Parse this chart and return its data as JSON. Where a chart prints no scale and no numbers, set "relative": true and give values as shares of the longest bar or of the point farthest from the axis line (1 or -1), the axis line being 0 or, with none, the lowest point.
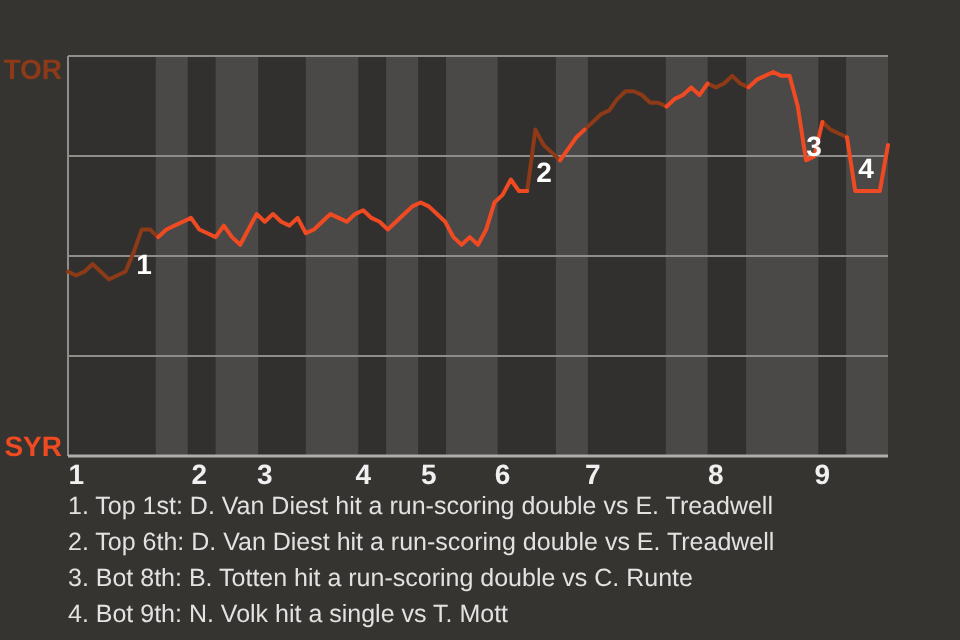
{
  "chart_data": {
    "type": "line",
    "relative": true,
    "categories": [
      null,
      "1",
      null,
      null,
      null,
      null,
      null,
      null,
      null,
      null,
      null,
      null,
      null,
      null,
      null,
      null,
      "2",
      null,
      null,
      null,
      null,
      null,
      null,
      null,
      "3",
      null,
      null,
      null,
      null,
      null,
      null,
      null,
      null,
      null,
      null,
      null,
      "4",
      null,
      null,
      null,
      null,
      null,
      null,
      null,
      "5",
      null,
      null,
      null,
      null,
      null,
      null,
      null,
      null,
      "6",
      null,
      null,
      null,
      null,
      null,
      null,
      null,
      null,
      null,
      null,
      "7",
      null,
      null,
      null,
      null,
      null,
      null,
      null,
      null,
      null,
      null,
      null,
      null,
      null,
      null,
      "8",
      null,
      null,
      null,
      null,
      null,
      null,
      null,
      null,
      null,
      null,
      null,
      null,
      "9",
      null,
      null,
      null,
      null,
      null,
      null,
      null,
      null
    ],
    "grid": "y",
    "series": [
      {
        "color": "#8c3a17",
        "values": [
          0.48,
          0.47,
          0.48,
          0.5,
          0.48,
          0.46,
          0.47,
          0.48,
          0.53,
          0.59,
          0.59,
          0.57,
          null,
          null,
          null,
          null,
          null,
          null,
          null,
          null,
          null,
          null,
          null,
          null,
          null,
          null,
          null,
          null,
          null,
          null,
          null,
          null,
          null,
          null,
          null,
          null,
          null,
          null,
          null,
          null,
          null,
          null,
          null,
          null,
          null,
          null,
          null,
          null,
          null,
          null,
          null,
          null,
          null,
          null,
          null,
          null,
          0.69,
          0.85,
          0.81,
          0.79,
          0.77,
          null,
          null,
          0.85,
          0.87,
          0.89,
          0.9,
          0.93,
          0.95,
          0.95,
          0.94,
          0.92,
          0.92,
          0.91,
          null,
          null,
          null,
          null,
          0.97,
          0.96,
          0.97,
          0.99,
          0.97,
          0.96,
          null,
          null,
          null,
          null,
          null,
          null,
          null,
          null,
          0.87,
          0.85,
          0.84,
          0.83,
          null,
          null,
          null,
          null,
          null
        ]
      },
      {
        "color": "#f04a22",
        "values": [
          null,
          null,
          null,
          null,
          null,
          null,
          null,
          null,
          null,
          null,
          null,
          0.57,
          0.59,
          0.6,
          0.61,
          0.62,
          0.59,
          0.58,
          0.57,
          0.6,
          0.57,
          0.55,
          0.59,
          0.63,
          0.61,
          0.63,
          0.61,
          0.6,
          0.62,
          0.58,
          0.59,
          0.61,
          0.63,
          0.62,
          0.61,
          0.63,
          0.64,
          0.62,
          0.61,
          0.59,
          0.61,
          0.63,
          0.65,
          0.66,
          0.65,
          0.63,
          0.61,
          0.57,
          0.55,
          0.57,
          0.55,
          0.59,
          0.66,
          0.68,
          0.72,
          0.69,
          0.69,
          null,
          null,
          null,
          0.77,
          0.8,
          0.83,
          0.85,
          null,
          null,
          null,
          null,
          null,
          null,
          null,
          null,
          null,
          0.91,
          0.93,
          0.94,
          0.96,
          0.94,
          0.97,
          null,
          null,
          null,
          null,
          0.96,
          0.98,
          0.99,
          1,
          0.99,
          0.99,
          0.91,
          0.77,
          0.78,
          0.87,
          null,
          null,
          0.83,
          0.69,
          0.69,
          0.69,
          0.69,
          0.81
        ]
      }
    ],
    "annotations": [
      "TOR",
      "SYR",
      "1",
      "2",
      "3",
      "4",
      "1. Top 1st: D. Van Diest hit a run-scoring double vs E. Treadwell",
      "2. Top 6th: D. Van Diest hit a run-scoring double vs E. Treadwell",
      "3. Bot 8th: B. Totten hit a run-scoring double vs C. Runte",
      "4. Bot 9th: N. Volk hit a single vs T. Mott"
    ]
  }
}
